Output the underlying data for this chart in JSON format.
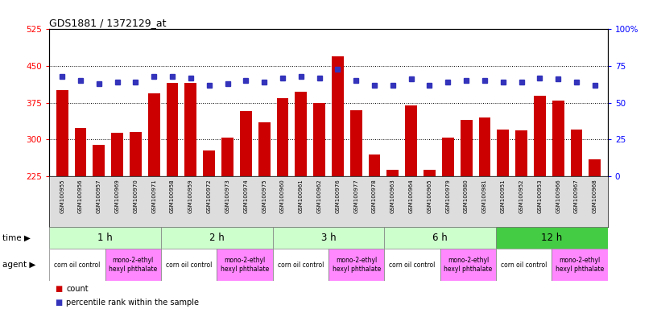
{
  "title": "GDS1881 / 1372129_at",
  "samples": [
    "GSM100955",
    "GSM100956",
    "GSM100957",
    "GSM100969",
    "GSM100970",
    "GSM100971",
    "GSM100958",
    "GSM100959",
    "GSM100972",
    "GSM100973",
    "GSM100974",
    "GSM100975",
    "GSM100960",
    "GSM100961",
    "GSM100962",
    "GSM100976",
    "GSM100977",
    "GSM100978",
    "GSM100963",
    "GSM100964",
    "GSM100965",
    "GSM100979",
    "GSM100980",
    "GSM100981",
    "GSM100951",
    "GSM100952",
    "GSM100953",
    "GSM100966",
    "GSM100967",
    "GSM100968"
  ],
  "counts": [
    400,
    323,
    289,
    313,
    315,
    395,
    415,
    415,
    278,
    303,
    358,
    335,
    385,
    398,
    375,
    470,
    360,
    270,
    238,
    370,
    238,
    303,
    340,
    345,
    320,
    318,
    390,
    380,
    320,
    260
  ],
  "percentile_ranks": [
    68,
    65,
    63,
    64,
    64,
    68,
    68,
    67,
    62,
    63,
    65,
    64,
    67,
    68,
    67,
    73,
    65,
    62,
    62,
    66,
    62,
    64,
    65,
    65,
    64,
    64,
    67,
    66,
    64,
    62
  ],
  "ymin": 225,
  "ymax": 525,
  "yticks_left": [
    225,
    300,
    375,
    450,
    525
  ],
  "yticks_right": [
    0,
    25,
    50,
    75,
    100
  ],
  "bar_color": "#CC0000",
  "dot_color": "#3333BB",
  "time_groups": [
    {
      "label": "1 h",
      "start": 0,
      "end": 6,
      "color": "#CCFFCC"
    },
    {
      "label": "2 h",
      "start": 6,
      "end": 12,
      "color": "#CCFFCC"
    },
    {
      "label": "3 h",
      "start": 12,
      "end": 18,
      "color": "#CCFFCC"
    },
    {
      "label": "6 h",
      "start": 18,
      "end": 24,
      "color": "#CCFFCC"
    },
    {
      "label": "12 h",
      "start": 24,
      "end": 30,
      "color": "#44CC44"
    }
  ],
  "agent_groups": [
    {
      "label": "corn oil control",
      "start": 0,
      "end": 3,
      "color": "#FFFFFF"
    },
    {
      "label": "mono-2-ethyl\nhexyl phthalate",
      "start": 3,
      "end": 6,
      "color": "#FF88FF"
    },
    {
      "label": "corn oil control",
      "start": 6,
      "end": 9,
      "color": "#FFFFFF"
    },
    {
      "label": "mono-2-ethyl\nhexyl phthalate",
      "start": 9,
      "end": 12,
      "color": "#FF88FF"
    },
    {
      "label": "corn oil control",
      "start": 12,
      "end": 15,
      "color": "#FFFFFF"
    },
    {
      "label": "mono-2-ethyl\nhexyl phthalate",
      "start": 15,
      "end": 18,
      "color": "#FF88FF"
    },
    {
      "label": "corn oil control",
      "start": 18,
      "end": 21,
      "color": "#FFFFFF"
    },
    {
      "label": "mono-2-ethyl\nhexyl phthalate",
      "start": 21,
      "end": 24,
      "color": "#FF88FF"
    },
    {
      "label": "corn oil control",
      "start": 24,
      "end": 27,
      "color": "#FFFFFF"
    },
    {
      "label": "mono-2-ethyl\nhexyl phthalate",
      "start": 27,
      "end": 30,
      "color": "#FF88FF"
    }
  ],
  "xtick_bg": "#DDDDDD"
}
